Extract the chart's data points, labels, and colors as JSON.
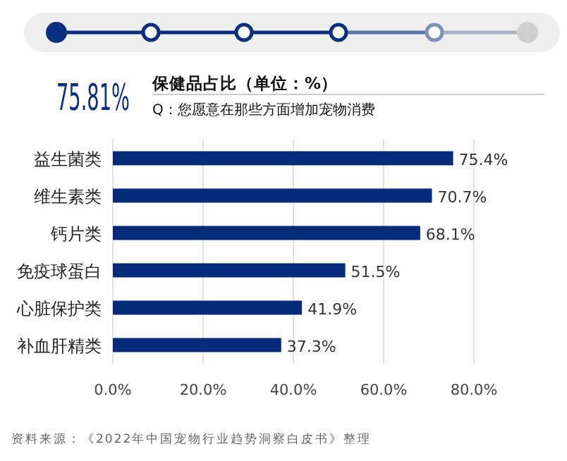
{
  "chart_data": {
    "type": "bar",
    "orientation": "horizontal",
    "title": "保健品占比（单位：%）",
    "subtitle": "Q：您愿意在那些方面增加宠物消费",
    "categories": [
      "益生菌类",
      "维生素类",
      "钙片类",
      "免疫球蛋白",
      "心脏保护类",
      "补血肝精类"
    ],
    "values": [
      75.4,
      70.7,
      68.1,
      51.5,
      41.9,
      37.3
    ],
    "value_labels": [
      "75.4%",
      "70.7%",
      "68.1%",
      "51.5%",
      "41.9%",
      "37.3%"
    ],
    "color": "#062b7a",
    "xlim": [
      0,
      80
    ],
    "xticks": [
      {
        "value": 0,
        "label": "0.0%"
      },
      {
        "value": 20,
        "label": "20.0%"
      },
      {
        "value": 40,
        "label": "40.0%"
      },
      {
        "value": 60,
        "label": "60.0%"
      },
      {
        "value": 80,
        "label": "80.0%"
      }
    ],
    "grid": "x",
    "annotations": [
      "75.81%",
      "资料来源：《2022年中国宠物行业趋势洞察白皮书》整理"
    ]
  }
}
